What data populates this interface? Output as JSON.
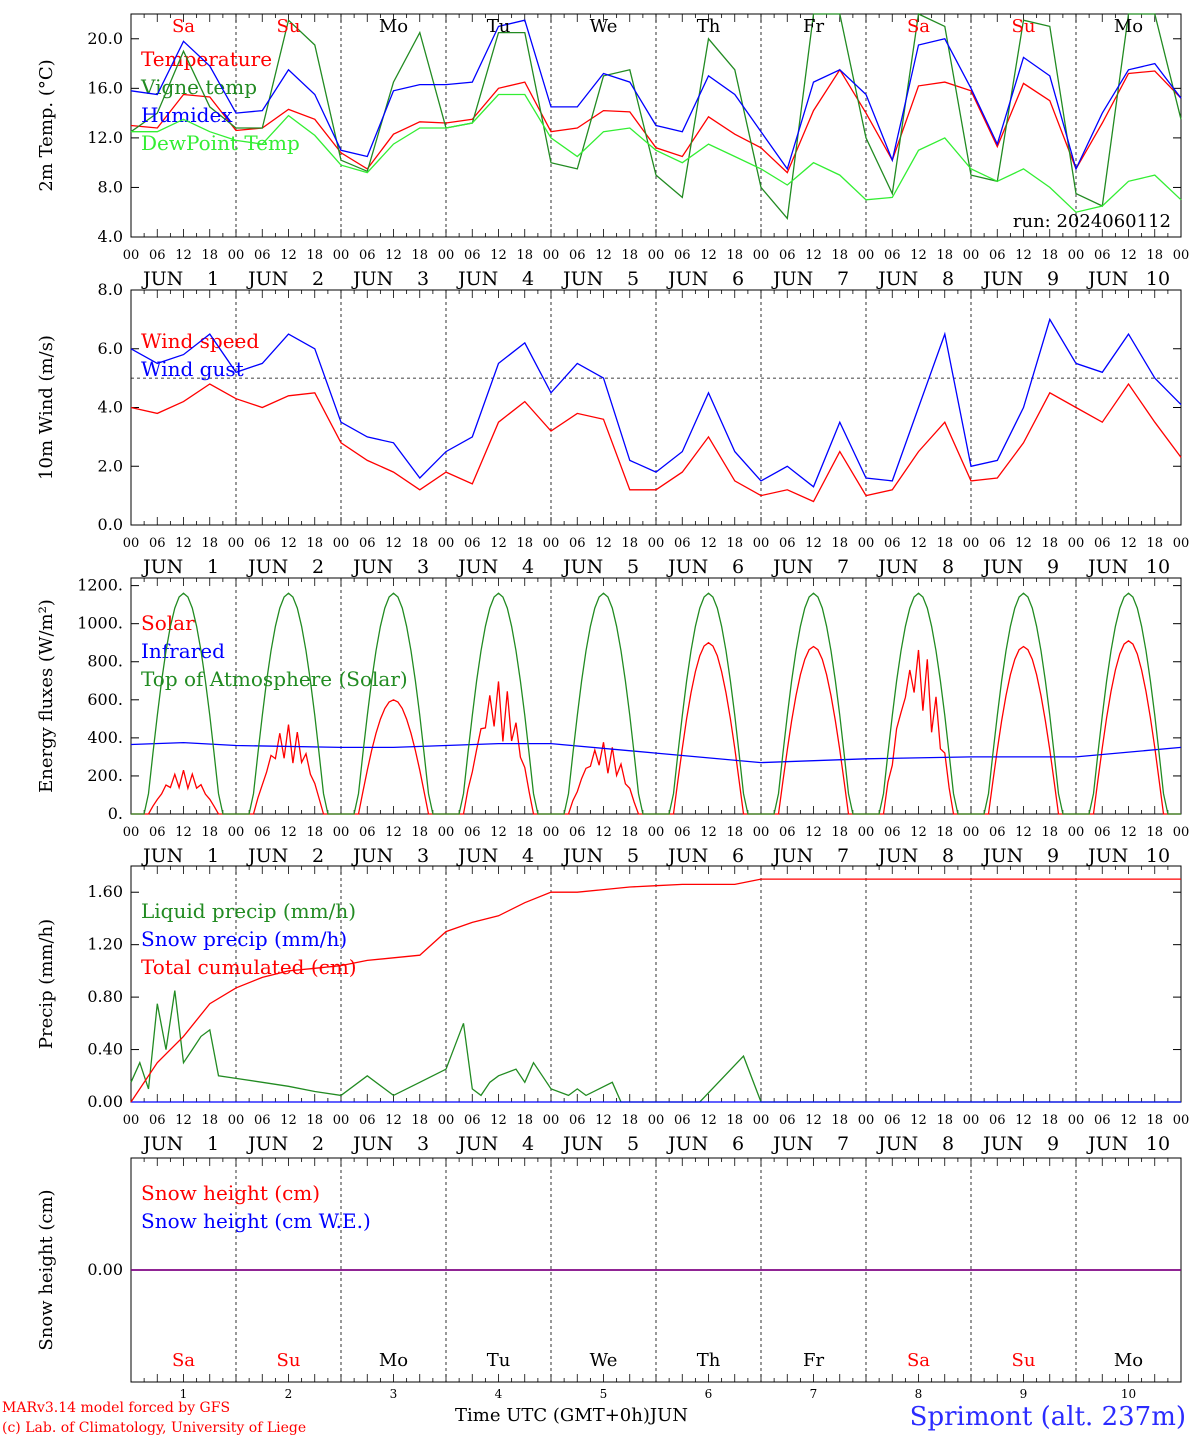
{
  "colors": {
    "red": "#ff0000",
    "green": "#228b22",
    "blue": "#0000ff",
    "lightgreen": "#33ee33",
    "purple": "#800080",
    "weekend": "#ff0000",
    "weekday": "#000000"
  },
  "days": [
    {
      "name": "Sa",
      "num": "1",
      "weekend": true
    },
    {
      "name": "Su",
      "num": "2",
      "weekend": true
    },
    {
      "name": "Mo",
      "num": "3",
      "weekend": false
    },
    {
      "name": "Tu",
      "num": "4",
      "weekend": false
    },
    {
      "name": "We",
      "num": "5",
      "weekend": false
    },
    {
      "name": "Th",
      "num": "6",
      "weekend": false
    },
    {
      "name": "Fr",
      "num": "7",
      "weekend": false
    },
    {
      "name": "Sa",
      "num": "8",
      "weekend": true
    },
    {
      "name": "Su",
      "num": "9",
      "weekend": true
    },
    {
      "name": "Mo",
      "num": "10",
      "weekend": false
    }
  ],
  "hour_ticks": [
    "00",
    "06",
    "12",
    "18"
  ],
  "final_hour_tick": "00",
  "month": "JUN",
  "chart_data": [
    {
      "type": "line",
      "ylabel": "2m Temp. (°C)",
      "ylim": [
        4,
        22
      ],
      "yticks": [
        "4.0",
        "8.0",
        "12.0",
        "16.0",
        "20.0"
      ],
      "xlim": [
        0,
        240
      ],
      "x_unit": "hours since 2024-06-01 00 UTC",
      "run_label": "run: 2024060112",
      "series": [
        {
          "name": "Temperature",
          "color": "red",
          "x": [
            0,
            6,
            12,
            18,
            24,
            30,
            36,
            42,
            48,
            54,
            60,
            66,
            72,
            78,
            84,
            90,
            96,
            102,
            108,
            114,
            120,
            126,
            132,
            138,
            144,
            150,
            156,
            162,
            168,
            174,
            180,
            186,
            192,
            198,
            204,
            210,
            216,
            222,
            228,
            234,
            240
          ],
          "y": [
            13,
            12.8,
            15.5,
            15.3,
            12.6,
            12.8,
            14.3,
            13.5,
            10.8,
            9.5,
            12.3,
            13.3,
            13.2,
            13.5,
            16,
            16.5,
            12.5,
            12.8,
            14.2,
            14.1,
            11.2,
            10.5,
            13.7,
            12.3,
            11.2,
            9.2,
            14.2,
            17.5,
            14,
            10.2,
            16.2,
            16.5,
            15.8,
            11.3,
            16.4,
            15,
            9.5,
            13.2,
            17.2,
            17.4,
            15.2
          ]
        },
        {
          "name": "Vigne temp",
          "color": "green",
          "x": [
            0,
            6,
            12,
            18,
            24,
            30,
            36,
            42,
            48,
            54,
            60,
            66,
            72,
            78,
            84,
            90,
            96,
            102,
            108,
            114,
            120,
            126,
            132,
            138,
            144,
            150,
            156,
            162,
            168,
            174,
            180,
            186,
            192,
            198,
            204,
            210,
            216,
            222,
            228,
            234,
            240
          ],
          "y": [
            12.5,
            14,
            19,
            14.5,
            12.8,
            12.8,
            21.5,
            19.5,
            10.2,
            9.3,
            16.5,
            20.5,
            12.8,
            13.2,
            20.5,
            20.5,
            10,
            9.5,
            17,
            17.5,
            9,
            7.2,
            20,
            17.5,
            8,
            5.5,
            22,
            22,
            12,
            7.5,
            22,
            21,
            9,
            8.5,
            21.5,
            21,
            7.5,
            6.5,
            22,
            22,
            13.5
          ]
        },
        {
          "name": "Humidex",
          "color": "blue",
          "x": [
            0,
            6,
            12,
            18,
            24,
            30,
            36,
            42,
            48,
            54,
            60,
            66,
            72,
            78,
            84,
            90,
            96,
            102,
            108,
            114,
            120,
            126,
            132,
            138,
            144,
            150,
            156,
            162,
            168,
            174,
            180,
            186,
            192,
            198,
            204,
            210,
            216,
            222,
            228,
            234,
            240
          ],
          "y": [
            15.8,
            15.5,
            19.8,
            17.8,
            14,
            14.2,
            17.5,
            15.5,
            11,
            10.5,
            15.8,
            16.3,
            16.3,
            16.5,
            21,
            21.5,
            14.5,
            14.5,
            17.2,
            16.5,
            13,
            12.5,
            17,
            15.5,
            12.5,
            9.5,
            16.5,
            17.5,
            15.5,
            10.2,
            19.5,
            20,
            16,
            11.5,
            18.5,
            17,
            9.5,
            14,
            17.5,
            18,
            15.2
          ]
        },
        {
          "name": "DewPoint Temp",
          "color": "lightgreen",
          "x": [
            0,
            6,
            12,
            18,
            24,
            30,
            36,
            42,
            48,
            54,
            60,
            66,
            72,
            78,
            84,
            90,
            96,
            102,
            108,
            114,
            120,
            126,
            132,
            138,
            144,
            150,
            156,
            162,
            168,
            174,
            180,
            186,
            192,
            198,
            204,
            210,
            216,
            222,
            228,
            234,
            240
          ],
          "y": [
            12.5,
            12.5,
            13.5,
            12.5,
            11.8,
            11.5,
            13.8,
            12.2,
            9.8,
            9.2,
            11.5,
            12.8,
            12.8,
            13.2,
            15.5,
            15.5,
            12,
            10.5,
            12.5,
            12.8,
            11,
            10,
            11.5,
            10.5,
            9.5,
            8.2,
            10,
            9,
            7,
            7.2,
            11,
            12,
            9.5,
            8.5,
            9.5,
            8,
            6,
            6.5,
            8.5,
            9,
            7
          ]
        }
      ]
    },
    {
      "type": "line",
      "ylabel": "10m Wind (m/s)",
      "ylim": [
        0,
        8
      ],
      "yticks": [
        "0.0",
        "2.0",
        "4.0",
        "6.0",
        "8.0"
      ],
      "xlim": [
        0,
        240
      ],
      "reference_line": 5,
      "series": [
        {
          "name": "Wind speed",
          "color": "red",
          "x": [
            0,
            6,
            12,
            18,
            24,
            30,
            36,
            42,
            48,
            54,
            60,
            66,
            72,
            78,
            84,
            90,
            96,
            102,
            108,
            114,
            120,
            126,
            132,
            138,
            144,
            150,
            156,
            162,
            168,
            174,
            180,
            186,
            192,
            198,
            204,
            210,
            216,
            222,
            228,
            234,
            240
          ],
          "y": [
            4,
            3.8,
            4.2,
            4.8,
            4.3,
            4,
            4.4,
            4.5,
            2.8,
            2.2,
            1.8,
            1.2,
            1.8,
            1.4,
            3.5,
            4.2,
            3.2,
            3.8,
            3.6,
            1.2,
            1.2,
            1.8,
            3,
            1.5,
            1,
            1.2,
            0.8,
            2.5,
            1,
            1.2,
            2.5,
            3.5,
            1.5,
            1.6,
            2.8,
            4.5,
            4,
            3.5,
            4.8,
            3.5,
            2.3
          ]
        },
        {
          "name": "Wind gust",
          "color": "blue",
          "x": [
            0,
            6,
            12,
            18,
            24,
            30,
            36,
            42,
            48,
            54,
            60,
            66,
            72,
            78,
            84,
            90,
            96,
            102,
            108,
            114,
            120,
            126,
            132,
            138,
            144,
            150,
            156,
            162,
            168,
            174,
            180,
            186,
            192,
            198,
            204,
            210,
            216,
            222,
            228,
            234,
            240
          ],
          "y": [
            6,
            5.5,
            5.8,
            6.5,
            5.2,
            5.5,
            6.5,
            6,
            3.5,
            3,
            2.8,
            1.6,
            2.5,
            3,
            5.5,
            6.2,
            4.5,
            5.5,
            5,
            2.2,
            1.8,
            2.5,
            4.5,
            2.5,
            1.5,
            2,
            1.3,
            3.5,
            1.6,
            1.5,
            4,
            6.5,
            2,
            2.2,
            4,
            7,
            5.5,
            5.2,
            6.5,
            5,
            4.1
          ]
        }
      ]
    },
    {
      "type": "line",
      "ylabel": "Energy fluxes (W/m²)",
      "ylim": [
        0,
        1240
      ],
      "yticks": [
        "0.",
        "200.",
        "400.",
        "600.",
        "800.",
        "1000.",
        "1200."
      ],
      "xlim": [
        0,
        240
      ],
      "series": [
        {
          "name": "Solar",
          "color": "red",
          "peaks": [
            230,
            470,
            600,
            700,
            380,
            900,
            880,
            880,
            880,
            910
          ]
        },
        {
          "name": "Infrared",
          "color": "blue",
          "x": [
            0,
            12,
            24,
            48,
            60,
            84,
            96,
            120,
            144,
            168,
            192,
            216,
            240
          ],
          "y": [
            365,
            375,
            360,
            350,
            350,
            370,
            370,
            320,
            270,
            290,
            300,
            300,
            350
          ]
        },
        {
          "name": "Top of Atmosphere (Solar)",
          "color": "green",
          "peaks": [
            1160,
            1160,
            1160,
            1160,
            1160,
            1160,
            1160,
            1160,
            1160,
            1160
          ]
        }
      ]
    },
    {
      "type": "line",
      "ylabel": "Precip (mm/h)",
      "ylim": [
        0,
        1.8
      ],
      "yticks": [
        "0.00",
        "0.40",
        "0.80",
        "1.20",
        "1.60"
      ],
      "xlim": [
        0,
        240
      ],
      "series": [
        {
          "name": "Liquid precip (mm/h)",
          "color": "green",
          "x": [
            0,
            2,
            4,
            6,
            8,
            10,
            12,
            14,
            16,
            18,
            20,
            24,
            30,
            36,
            42,
            48,
            54,
            60,
            66,
            72,
            76,
            78,
            80,
            82,
            84,
            88,
            90,
            92,
            94,
            96,
            100,
            102,
            104,
            110,
            112,
            120,
            130,
            140,
            144,
            150,
            160,
            170,
            180,
            190,
            200,
            210,
            220,
            230,
            240
          ],
          "y": [
            0.15,
            0.3,
            0.1,
            0.75,
            0.4,
            0.85,
            0.3,
            0.4,
            0.5,
            0.55,
            0.2,
            0.18,
            0.15,
            0.12,
            0.08,
            0.05,
            0.2,
            0.05,
            0.15,
            0.25,
            0.6,
            0.1,
            0.05,
            0.15,
            0.2,
            0.25,
            0.15,
            0.3,
            0.2,
            0.1,
            0.05,
            0.1,
            0.05,
            0.15,
            0,
            0,
            0,
            0.35,
            0,
            0,
            0,
            0,
            0,
            0,
            0,
            0,
            0,
            0,
            0
          ]
        },
        {
          "name": "Snow precip (mm/h)",
          "color": "blue",
          "x": [
            0,
            240
          ],
          "y": [
            0,
            0
          ]
        },
        {
          "name": "Total cumulated (cm)",
          "color": "red",
          "x": [
            0,
            6,
            12,
            18,
            24,
            30,
            36,
            42,
            48,
            54,
            60,
            66,
            72,
            78,
            84,
            90,
            96,
            102,
            108,
            114,
            120,
            126,
            132,
            138,
            144,
            150,
            168,
            192,
            216,
            240
          ],
          "y": [
            0,
            0.3,
            0.5,
            0.75,
            0.87,
            0.95,
            1.0,
            1.02,
            1.04,
            1.08,
            1.1,
            1.12,
            1.3,
            1.37,
            1.42,
            1.52,
            1.6,
            1.6,
            1.62,
            1.64,
            1.65,
            1.66,
            1.66,
            1.66,
            1.7,
            1.7,
            1.7,
            1.7,
            1.7,
            1.7
          ]
        }
      ]
    },
    {
      "type": "line",
      "ylabel": "Snow height (cm)",
      "ylim": [
        -1,
        1
      ],
      "yticks": [
        "0.00"
      ],
      "xlim": [
        0,
        240
      ],
      "series": [
        {
          "name": "Snow height (cm)",
          "color": "red",
          "x": [
            0,
            240
          ],
          "y": [
            0,
            0
          ]
        },
        {
          "name": "Snow height (cm W.E.)",
          "color": "blue",
          "x": [
            0,
            240
          ],
          "y": [
            0,
            0
          ]
        }
      ]
    }
  ],
  "footer": {
    "model_line": "MARv3.14 model forced by GFS",
    "lab_line": "(c) Lab. of Climatology, University of Liege",
    "xlabel": "Time UTC (GMT+0h)",
    "month_label": "JUN",
    "location": "Sprimont (alt. 237m)"
  }
}
